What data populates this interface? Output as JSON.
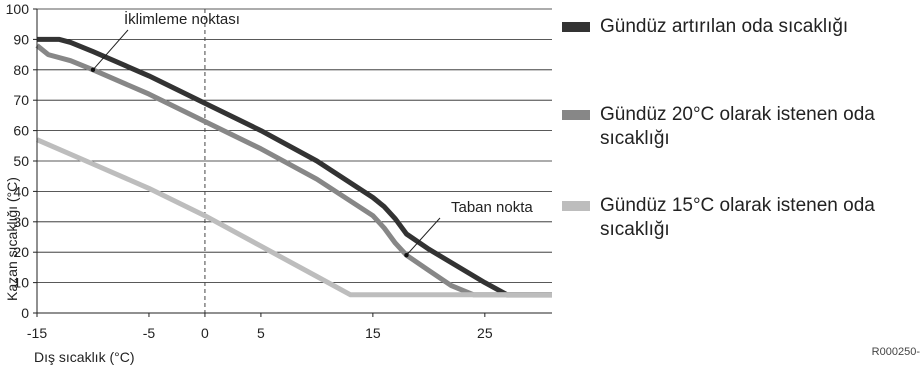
{
  "chart_data": {
    "type": "line",
    "xlabel": "Dış sıcaklık (°C)",
    "ylabel": "Kazan sıcaklığı (°C)",
    "xlim": [
      -15,
      31
    ],
    "ylim": [
      0,
      100
    ],
    "xticks": [
      -15,
      -5,
      0,
      5,
      15,
      25
    ],
    "yticks": [
      0,
      10,
      20,
      30,
      40,
      50,
      60,
      70,
      80,
      90,
      100
    ],
    "grid": "horizontal",
    "legend_position": "right",
    "reference_line": {
      "x": 0,
      "style": "dashed"
    },
    "series": [
      {
        "name": "Gündüz artırılan oda sıcaklığı",
        "color": "#333333",
        "x": [
          -15,
          -13,
          -12,
          -10,
          -5,
          0,
          5,
          10,
          15,
          16,
          17,
          18,
          20,
          25,
          27,
          28,
          31
        ],
        "y": [
          90,
          90,
          89,
          86,
          78,
          69,
          60,
          50,
          38,
          35,
          31,
          26,
          21,
          10,
          6,
          6,
          6
        ]
      },
      {
        "name": "Gündüz 20°C olarak istenen oda sıcaklığı",
        "color": "#878787",
        "x": [
          -15,
          -14,
          -12,
          -10,
          -5,
          0,
          5,
          10,
          15,
          16,
          17,
          18,
          20,
          22,
          24,
          25,
          31
        ],
        "y": [
          88,
          85,
          83,
          80,
          72,
          63,
          54,
          44,
          32,
          28,
          23,
          19,
          14,
          9,
          6,
          6,
          6
        ]
      },
      {
        "name": "Gündüz 15°C olarak istenen oda sıcaklığı",
        "color": "#bdbdbd",
        "x": [
          -15,
          -10,
          -5,
          0,
          5,
          10,
          13,
          31
        ],
        "y": [
          57,
          49,
          41,
          32,
          22,
          12,
          6,
          6
        ]
      }
    ],
    "annotations": [
      {
        "text": "İklimleme noktası",
        "x": -10,
        "y": 80
      },
      {
        "text": "Taban nokta",
        "x": 18,
        "y": 19
      }
    ]
  },
  "footer": {
    "code": "R000250-"
  }
}
